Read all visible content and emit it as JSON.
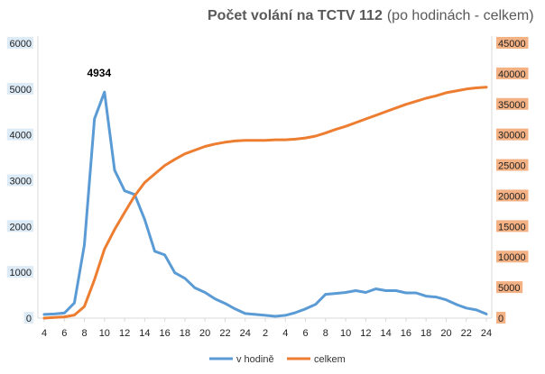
{
  "chart_data": {
    "type": "line",
    "title": "Počet volání na TCTV 112",
    "title_suffix": "(po hodinách - celkem)",
    "x": [
      4,
      5,
      6,
      7,
      8,
      9,
      10,
      11,
      12,
      13,
      14,
      15,
      16,
      17,
      18,
      19,
      20,
      21,
      22,
      23,
      24,
      1,
      2,
      3,
      4,
      5,
      6,
      7,
      8,
      9,
      10,
      11,
      12,
      13,
      14,
      15,
      16,
      17,
      18,
      19,
      20,
      21,
      22,
      23,
      24
    ],
    "x_tick_labels": [
      "4",
      "6",
      "8",
      "10",
      "12",
      "14",
      "16",
      "18",
      "20",
      "22",
      "24",
      "2",
      "4",
      "6",
      "8",
      "10",
      "12",
      "14",
      "16",
      "18",
      "20",
      "22",
      "24"
    ],
    "y_left": {
      "ticks": [
        "0",
        "1000",
        "2000",
        "3000",
        "4000",
        "5000",
        "6000"
      ],
      "range": [
        0,
        6000
      ]
    },
    "y_right": {
      "ticks": [
        "0",
        "5000",
        "10000",
        "15000",
        "20000",
        "25000",
        "30000",
        "35000",
        "40000",
        "45000"
      ],
      "range": [
        0,
        45000
      ]
    },
    "series": [
      {
        "name": "v hodině",
        "axis": "left",
        "color": "#5B9BD5",
        "values": [
          80,
          90,
          110,
          330,
          1600,
          4350,
          4934,
          3230,
          2780,
          2700,
          2150,
          1460,
          1380,
          990,
          870,
          660,
          560,
          420,
          320,
          200,
          100,
          80,
          60,
          40,
          60,
          120,
          200,
          300,
          520,
          540,
          560,
          600,
          560,
          640,
          600,
          600,
          550,
          550,
          480,
          460,
          400,
          300,
          220,
          180,
          90
        ]
      },
      {
        "name": "celkem",
        "axis": "right",
        "color": "#ED7D31",
        "values": [
          0,
          100,
          200,
          500,
          1900,
          6300,
          11300,
          14500,
          17300,
          20000,
          22200,
          23600,
          25000,
          26000,
          26900,
          27500,
          28100,
          28500,
          28800,
          29000,
          29100,
          29100,
          29100,
          29200,
          29200,
          29300,
          29500,
          29800,
          30300,
          30900,
          31400,
          32000,
          32600,
          33200,
          33800,
          34400,
          35000,
          35500,
          36000,
          36400,
          36900,
          37200,
          37500,
          37700,
          37800
        ]
      }
    ],
    "annotation": {
      "text": "4934",
      "x_index": 6,
      "series": 0
    },
    "legend_placement": "bottom",
    "grid": false
  }
}
